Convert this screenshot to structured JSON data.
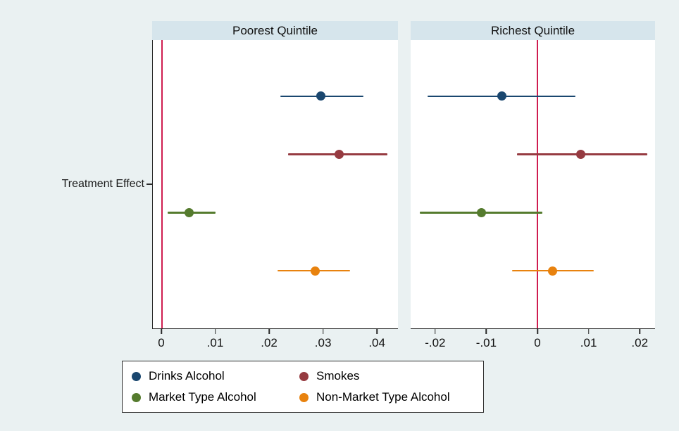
{
  "colors": {
    "page_background": "#eaf1f2",
    "panel_header_background": "#d6e5ec",
    "plot_background": "#ffffff",
    "axis": "#2a2a2a",
    "zero_line": "#cf1d50",
    "navy": "#1a476f",
    "maroon": "#963b41",
    "olive_green": "#557b2e",
    "orange": "#e8820e"
  },
  "chart_data": {
    "type": "scatter",
    "subtype": "coefficient dot-and-whisker plot with confidence intervals, by quintile panel",
    "category_label": "Treatment Effect",
    "grid": false,
    "legend_position": "bottom",
    "series": [
      {
        "name": "Drinks Alcohol",
        "color": "#1a476f"
      },
      {
        "name": "Smokes",
        "color": "#963b41"
      },
      {
        "name": "Market Type Alcohol",
        "color": "#557b2e"
      },
      {
        "name": "Non-Market Type Alcohol",
        "color": "#e8820e"
      }
    ],
    "row_fraction_start": 0.195,
    "row_fraction_end": 0.8,
    "panels": [
      {
        "title": "Poorest Quintile",
        "xlim": [
          -0.0017,
          0.0439
        ],
        "zero_line": 0,
        "xticks": [
          0,
          0.01,
          0.02,
          0.03,
          0.04
        ],
        "xtick_labels": [
          "0",
          ".01",
          ".02",
          ".03",
          ".04"
        ],
        "points": [
          {
            "series": "Drinks Alcohol",
            "estimate": 0.0295,
            "ci_low": 0.022,
            "ci_high": 0.0375
          },
          {
            "series": "Smokes",
            "estimate": 0.033,
            "ci_low": 0.0235,
            "ci_high": 0.042
          },
          {
            "series": "Market Type Alcohol",
            "estimate": 0.005,
            "ci_low": 0.001,
            "ci_high": 0.01
          },
          {
            "series": "Non-Market Type Alcohol",
            "estimate": 0.0285,
            "ci_low": 0.0215,
            "ci_high": 0.035
          }
        ]
      },
      {
        "title": "Richest Quintile",
        "xlim": [
          -0.0248,
          0.023
        ],
        "zero_line": 0,
        "xticks": [
          -0.02,
          -0.01,
          0,
          0.01,
          0.02
        ],
        "xtick_labels": [
          "-.02",
          "-.01",
          "0",
          ".01",
          ".02"
        ],
        "points": [
          {
            "series": "Drinks Alcohol",
            "estimate": -0.007,
            "ci_low": -0.0215,
            "ci_high": 0.0075
          },
          {
            "series": "Smokes",
            "estimate": 0.0085,
            "ci_low": -0.004,
            "ci_high": 0.0215
          },
          {
            "series": "Market Type Alcohol",
            "estimate": -0.011,
            "ci_low": -0.023,
            "ci_high": 0.001
          },
          {
            "series": "Non-Market Type Alcohol",
            "estimate": 0.003,
            "ci_low": -0.005,
            "ci_high": 0.011
          }
        ]
      }
    ]
  }
}
